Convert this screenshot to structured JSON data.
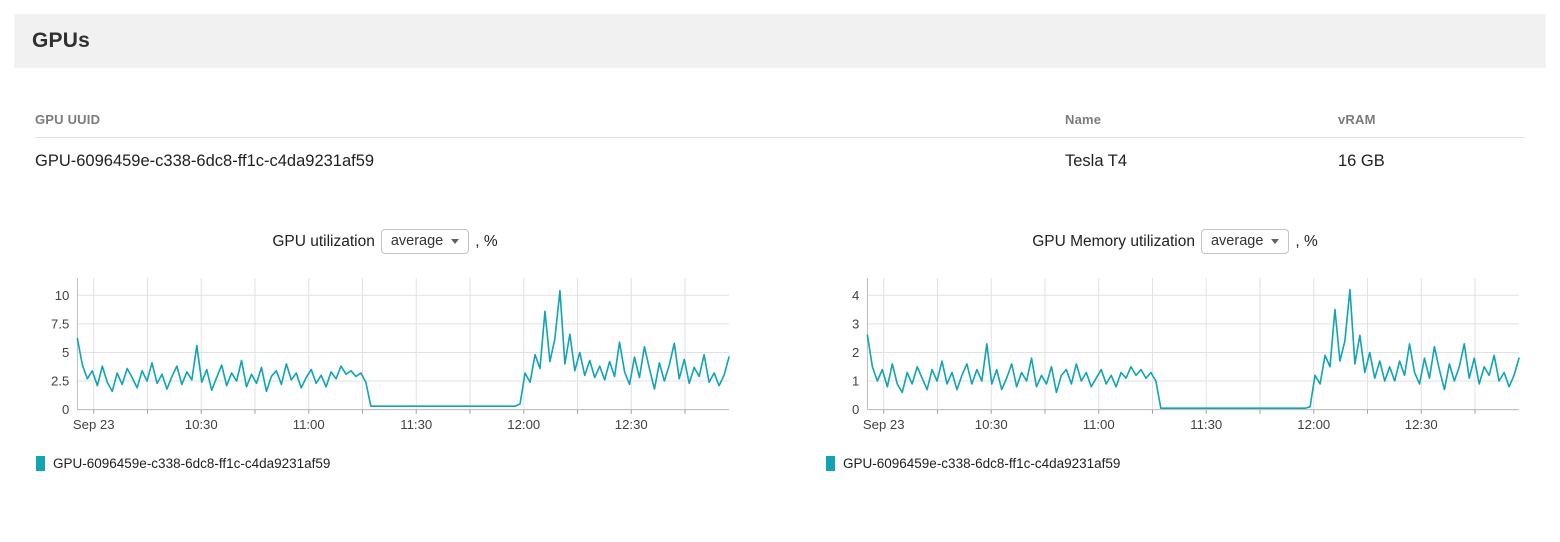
{
  "header": {
    "title": "GPUs"
  },
  "table": {
    "columns": [
      "GPU UUID",
      "Name",
      "vRAM"
    ],
    "rows": [
      {
        "uuid": "GPU-6096459e-c338-6dc8-ff1c-c4da9231af59",
        "name": "Tesla T4",
        "vram": "16 GB"
      }
    ]
  },
  "colors": {
    "series": "#12a4b4",
    "grid": "#e2e2e2",
    "axis": "#bdbdbd",
    "tick_text": "#424242",
    "header_bg": "#f1f1f1"
  },
  "chart_data": [
    {
      "type": "line",
      "title_prefix": "GPU utilization",
      "unit_suffix": ", %",
      "aggregation": {
        "selected": "average"
      },
      "y_ticks": [
        0,
        2.5,
        5,
        7.5,
        10
      ],
      "ylim": [
        0,
        11.5
      ],
      "grid": true,
      "legend_position": "bottom-left",
      "x_ticks": [
        {
          "label": "Sep 23",
          "pos": 0.025
        },
        {
          "label": "10:30",
          "pos": 0.19
        },
        {
          "label": "11:00",
          "pos": 0.355
        },
        {
          "label": "11:30",
          "pos": 0.52
        },
        {
          "label": "12:00",
          "pos": 0.685
        },
        {
          "label": "12:30",
          "pos": 0.85
        }
      ],
      "x_grid": [
        0.025,
        0.1075,
        0.19,
        0.2725,
        0.355,
        0.4375,
        0.52,
        0.6025,
        0.685,
        0.7675,
        0.85,
        0.9325
      ],
      "series": [
        {
          "name": "GPU-6096459e-c338-6dc8-ff1c-c4da9231af59",
          "color": "#12a4b4",
          "values": [
            6.2,
            3.9,
            2.7,
            3.4,
            2.1,
            3.8,
            2.4,
            1.6,
            3.2,
            2.2,
            3.6,
            2.8,
            1.9,
            3.4,
            2.5,
            4.1,
            2.3,
            3.1,
            1.8,
            2.9,
            3.8,
            2.2,
            3.3,
            2.6,
            5.6,
            2.4,
            3.5,
            1.7,
            2.8,
            3.9,
            2.1,
            3.2,
            2.5,
            4.3,
            2.0,
            3.1,
            2.3,
            3.7,
            1.6,
            2.9,
            3.4,
            2.2,
            4.0,
            2.6,
            3.2,
            1.9,
            2.8,
            3.5,
            2.3,
            3.0,
            2.0,
            3.3,
            2.7,
            3.8,
            3.1,
            3.4,
            2.9,
            3.2,
            2.4,
            0.3,
            0.3,
            0.3,
            0.3,
            0.3,
            0.3,
            0.3,
            0.3,
            0.3,
            0.3,
            0.3,
            0.3,
            0.3,
            0.3,
            0.3,
            0.3,
            0.3,
            0.3,
            0.3,
            0.3,
            0.3,
            0.3,
            0.3,
            0.3,
            0.3,
            0.3,
            0.3,
            0.3,
            0.3,
            0.3,
            0.5,
            3.2,
            2.4,
            4.8,
            3.6,
            8.6,
            4.2,
            6.2,
            10.4,
            4.0,
            6.6,
            3.4,
            5.0,
            3.0,
            4.3,
            2.8,
            3.8,
            2.6,
            4.2,
            2.9,
            5.9,
            3.3,
            2.2,
            4.6,
            2.8,
            5.5,
            3.6,
            1.8,
            4.1,
            2.5,
            3.9,
            5.8,
            2.7,
            4.4,
            2.3,
            3.7,
            2.9,
            4.8,
            2.4,
            3.2,
            2.1,
            3.0,
            4.6
          ]
        }
      ]
    },
    {
      "type": "line",
      "title_prefix": "GPU Memory utilization",
      "unit_suffix": ", %",
      "aggregation": {
        "selected": "average"
      },
      "y_ticks": [
        0,
        1,
        2,
        3,
        4
      ],
      "ylim": [
        0,
        4.6
      ],
      "grid": true,
      "legend_position": "bottom-left",
      "x_ticks": [
        {
          "label": "Sep 23",
          "pos": 0.025
        },
        {
          "label": "10:30",
          "pos": 0.19
        },
        {
          "label": "11:00",
          "pos": 0.355
        },
        {
          "label": "11:30",
          "pos": 0.52
        },
        {
          "label": "12:00",
          "pos": 0.685
        },
        {
          "label": "12:30",
          "pos": 0.85
        }
      ],
      "x_grid": [
        0.025,
        0.1075,
        0.19,
        0.2725,
        0.355,
        0.4375,
        0.52,
        0.6025,
        0.685,
        0.7675,
        0.85,
        0.9325
      ],
      "series": [
        {
          "name": "GPU-6096459e-c338-6dc8-ff1c-c4da9231af59",
          "color": "#12a4b4",
          "values": [
            2.6,
            1.5,
            1.0,
            1.4,
            0.8,
            1.6,
            0.9,
            0.6,
            1.3,
            0.9,
            1.5,
            1.1,
            0.7,
            1.4,
            1.0,
            1.7,
            0.9,
            1.3,
            0.7,
            1.2,
            1.6,
            0.9,
            1.4,
            1.0,
            2.3,
            0.9,
            1.4,
            0.7,
            1.1,
            1.6,
            0.8,
            1.3,
            1.0,
            1.8,
            0.8,
            1.2,
            0.9,
            1.5,
            0.6,
            1.2,
            1.4,
            0.9,
            1.6,
            1.0,
            1.3,
            0.8,
            1.1,
            1.4,
            0.9,
            1.2,
            0.8,
            1.3,
            1.1,
            1.5,
            1.2,
            1.4,
            1.1,
            1.3,
            1.0,
            0.05,
            0.05,
            0.05,
            0.05,
            0.05,
            0.05,
            0.05,
            0.05,
            0.05,
            0.05,
            0.05,
            0.05,
            0.05,
            0.05,
            0.05,
            0.05,
            0.05,
            0.05,
            0.05,
            0.05,
            0.05,
            0.05,
            0.05,
            0.05,
            0.05,
            0.05,
            0.05,
            0.05,
            0.05,
            0.05,
            0.1,
            1.2,
            0.9,
            1.9,
            1.5,
            3.5,
            1.7,
            2.4,
            4.2,
            1.6,
            2.6,
            1.3,
            2.0,
            1.1,
            1.7,
            1.0,
            1.5,
            1.0,
            1.7,
            1.2,
            2.3,
            1.3,
            0.9,
            1.8,
            1.1,
            2.2,
            1.4,
            0.7,
            1.6,
            1.0,
            1.5,
            2.3,
            1.1,
            1.8,
            0.9,
            1.5,
            1.2,
            1.9,
            1.0,
            1.3,
            0.8,
            1.2,
            1.8
          ]
        }
      ]
    }
  ]
}
